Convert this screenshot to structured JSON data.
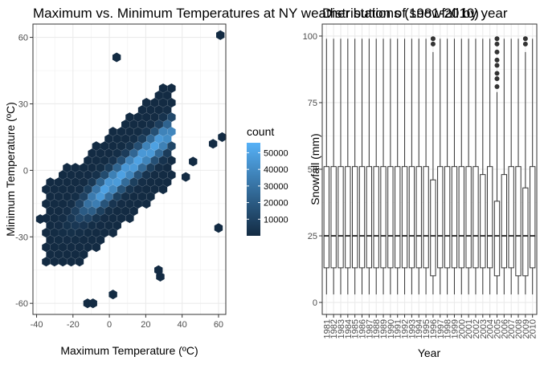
{
  "chart_data": [
    {
      "type": "hexbin",
      "title": "Maximum vs. Minimum Temperatures at NY weather stations (1981-2010)",
      "xlabel": "Maximum Temperature (ºC)",
      "ylabel": "Minimum Temperature (ºC)",
      "xlim": [
        -42,
        64
      ],
      "ylim": [
        -65,
        66
      ],
      "xticks": [
        -40,
        -20,
        0,
        20,
        40,
        60
      ],
      "yticks": [
        -60,
        -30,
        0,
        30,
        60
      ],
      "grid": true,
      "legend": {
        "title": "count",
        "position": "right",
        "ticks": [
          10000,
          20000,
          30000,
          40000,
          50000
        ],
        "min": 1,
        "max": 56000,
        "color_low": "#132B43",
        "color_high": "#56B1F7"
      },
      "ridge": {
        "slope": 0.72,
        "intercept": -7,
        "peak_x": [
          -3,
          28
        ],
        "peak_count": 55000
      },
      "isolated_points": [
        {
          "x": 61,
          "y": 61
        },
        {
          "x": 4,
          "y": 51
        },
        {
          "x": 60,
          "y": -26
        },
        {
          "x": -38,
          "y": -22
        },
        {
          "x": 28,
          "y": -48
        },
        {
          "x": 27,
          "y": -45
        },
        {
          "x": 2,
          "y": -56
        },
        {
          "x": -12,
          "y": -60
        },
        {
          "x": -9,
          "y": -60
        },
        {
          "x": 42,
          "y": -3
        },
        {
          "x": 46,
          "y": 4
        },
        {
          "x": 57,
          "y": 12
        },
        {
          "x": 62,
          "y": 15
        }
      ]
    },
    {
      "type": "boxplot",
      "title": "Distribution of snowfall by year",
      "xlabel": "Year",
      "ylabel": "Snowfall (mm)",
      "ylim": [
        0,
        100
      ],
      "yticks": [
        0,
        25,
        50,
        75,
        100
      ],
      "grid": true,
      "categories": [
        "1981",
        "1982",
        "1983",
        "1984",
        "1985",
        "1986",
        "1987",
        "1988",
        "1989",
        "1990",
        "1991",
        "1992",
        "1993",
        "1994",
        "1995",
        "1996",
        "1997",
        "1998",
        "1999",
        "2000",
        "2001",
        "2002",
        "2003",
        "2004",
        "2005",
        "2006",
        "2007",
        "2008",
        "2009",
        "2010"
      ],
      "boxes": [
        {
          "year": "1981",
          "low": 3,
          "q1": 13,
          "median": 25,
          "q3": 51,
          "high": 99,
          "outliers": []
        },
        {
          "year": "1982",
          "low": 3,
          "q1": 13,
          "median": 25,
          "q3": 51,
          "high": 99,
          "outliers": []
        },
        {
          "year": "1983",
          "low": 3,
          "q1": 13,
          "median": 25,
          "q3": 51,
          "high": 99,
          "outliers": []
        },
        {
          "year": "1984",
          "low": 3,
          "q1": 13,
          "median": 25,
          "q3": 51,
          "high": 99,
          "outliers": []
        },
        {
          "year": "1985",
          "low": 3,
          "q1": 13,
          "median": 25,
          "q3": 51,
          "high": 99,
          "outliers": []
        },
        {
          "year": "1986",
          "low": 3,
          "q1": 13,
          "median": 25,
          "q3": 51,
          "high": 99,
          "outliers": []
        },
        {
          "year": "1987",
          "low": 3,
          "q1": 13,
          "median": 25,
          "q3": 51,
          "high": 99,
          "outliers": []
        },
        {
          "year": "1988",
          "low": 3,
          "q1": 13,
          "median": 25,
          "q3": 51,
          "high": 99,
          "outliers": []
        },
        {
          "year": "1989",
          "low": 3,
          "q1": 13,
          "median": 25,
          "q3": 51,
          "high": 99,
          "outliers": []
        },
        {
          "year": "1990",
          "low": 3,
          "q1": 13,
          "median": 25,
          "q3": 51,
          "high": 99,
          "outliers": []
        },
        {
          "year": "1991",
          "low": 3,
          "q1": 13,
          "median": 25,
          "q3": 51,
          "high": 99,
          "outliers": []
        },
        {
          "year": "1992",
          "low": 3,
          "q1": 13,
          "median": 25,
          "q3": 51,
          "high": 99,
          "outliers": []
        },
        {
          "year": "1993",
          "low": 3,
          "q1": 13,
          "median": 25,
          "q3": 51,
          "high": 99,
          "outliers": []
        },
        {
          "year": "1994",
          "low": 3,
          "q1": 13,
          "median": 25,
          "q3": 51,
          "high": 99,
          "outliers": []
        },
        {
          "year": "1995",
          "low": 3,
          "q1": 13,
          "median": 25,
          "q3": 51,
          "high": 99,
          "outliers": []
        },
        {
          "year": "1996",
          "low": 3,
          "q1": 10,
          "median": 25,
          "q3": 46,
          "high": 94,
          "outliers": [
            97,
            99
          ]
        },
        {
          "year": "1997",
          "low": 3,
          "q1": 13,
          "median": 25,
          "q3": 51,
          "high": 99,
          "outliers": []
        },
        {
          "year": "1998",
          "low": 3,
          "q1": 13,
          "median": 25,
          "q3": 51,
          "high": 99,
          "outliers": []
        },
        {
          "year": "1999",
          "low": 3,
          "q1": 13,
          "median": 25,
          "q3": 51,
          "high": 99,
          "outliers": []
        },
        {
          "year": "2000",
          "low": 3,
          "q1": 13,
          "median": 25,
          "q3": 51,
          "high": 99,
          "outliers": []
        },
        {
          "year": "2001",
          "low": 3,
          "q1": 13,
          "median": 25,
          "q3": 51,
          "high": 99,
          "outliers": []
        },
        {
          "year": "2002",
          "low": 3,
          "q1": 13,
          "median": 25,
          "q3": 51,
          "high": 99,
          "outliers": []
        },
        {
          "year": "2003",
          "low": 3,
          "q1": 13,
          "median": 25,
          "q3": 48,
          "high": 99,
          "outliers": []
        },
        {
          "year": "2004",
          "low": 3,
          "q1": 13,
          "median": 25,
          "q3": 51,
          "high": 99,
          "outliers": []
        },
        {
          "year": "2005",
          "low": 3,
          "q1": 10,
          "median": 25,
          "q3": 38,
          "high": 79,
          "outliers": [
            81,
            84,
            86,
            89,
            91,
            94,
            97,
            99
          ]
        },
        {
          "year": "2006",
          "low": 3,
          "q1": 13,
          "median": 25,
          "q3": 48,
          "high": 99,
          "outliers": []
        },
        {
          "year": "2007",
          "low": 3,
          "q1": 13,
          "median": 25,
          "q3": 51,
          "high": 99,
          "outliers": []
        },
        {
          "year": "2008",
          "low": 3,
          "q1": 10,
          "median": 25,
          "q3": 51,
          "high": 99,
          "outliers": []
        },
        {
          "year": "2009",
          "low": 3,
          "q1": 10,
          "median": 25,
          "q3": 43,
          "high": 94,
          "outliers": [
            97,
            99
          ]
        },
        {
          "year": "2010",
          "low": 3,
          "q1": 13,
          "median": 25,
          "q3": 51,
          "high": 99,
          "outliers": []
        }
      ]
    }
  ]
}
